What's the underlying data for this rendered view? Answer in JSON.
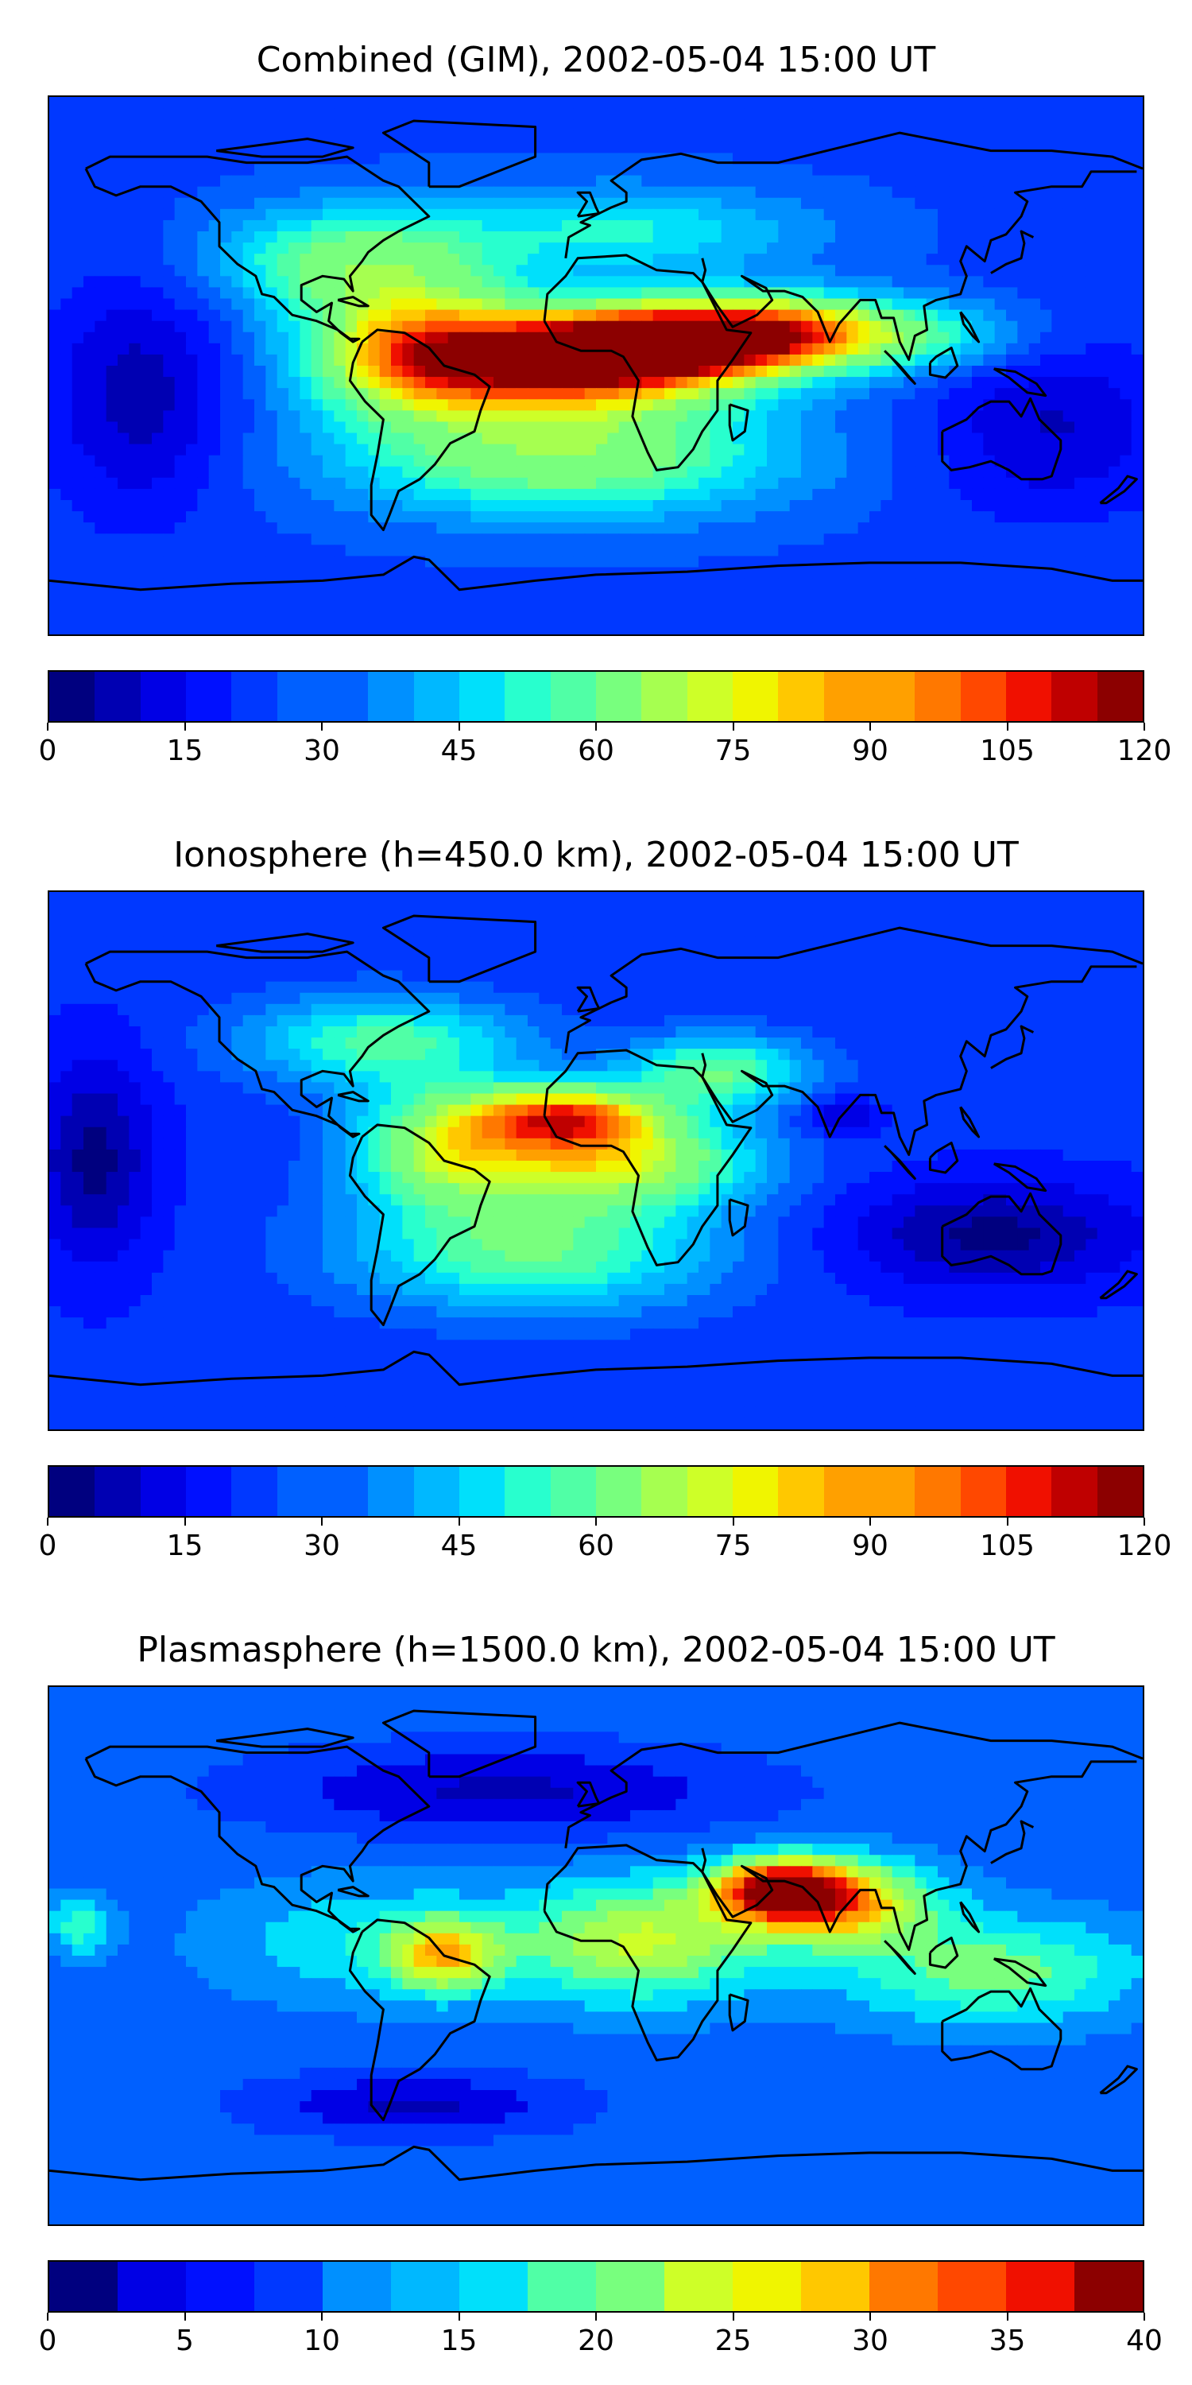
{
  "colors": {
    "jet": [
      "#00007f",
      "#0000b2",
      "#0000e5",
      "#0010ff",
      "#0038ff",
      "#0060ff",
      "#0090ff",
      "#00b8ff",
      "#00e0fb",
      "#28ffce",
      "#50ffa6",
      "#78ff7e",
      "#a6ff50",
      "#ceff28",
      "#f0f500",
      "#ffc800",
      "#ffa000",
      "#ff7800",
      "#ff4800",
      "#f01000",
      "#bf0000",
      "#8c0000"
    ],
    "land_outline": "#000000"
  },
  "panels": [
    {
      "title": "Combined (GIM), 2002-05-04 15:00 UT",
      "colorbar": {
        "min": 0,
        "max": 120,
        "levels": 24,
        "ticks": [
          "0",
          "15",
          "30",
          "45",
          "60",
          "75",
          "90",
          "105",
          "120"
        ]
      },
      "field": {
        "background": 0.22,
        "blobs": [
          {
            "lon": -10,
            "lat": 2,
            "rx": 55,
            "ry": 16,
            "v": 0.92
          },
          {
            "lon": 25,
            "lat": 8,
            "rx": 40,
            "ry": 12,
            "v": 0.78
          },
          {
            "lon": -60,
            "lat": 5,
            "rx": 35,
            "ry": 22,
            "v": 0.6
          },
          {
            "lon": 60,
            "lat": 12,
            "rx": 35,
            "ry": 12,
            "v": 0.6
          },
          {
            "lon": 100,
            "lat": 10,
            "rx": 40,
            "ry": 12,
            "v": 0.45
          },
          {
            "lon": -10,
            "lat": -30,
            "rx": 70,
            "ry": 20,
            "v": 0.55
          },
          {
            "lon": -80,
            "lat": 35,
            "rx": 45,
            "ry": 18,
            "v": 0.5
          },
          {
            "lon": 10,
            "lat": 45,
            "rx": 60,
            "ry": 15,
            "v": 0.4
          },
          {
            "lon": -150,
            "lat": -10,
            "rx": 30,
            "ry": 40,
            "v": 0.08
          },
          {
            "lon": 150,
            "lat": -20,
            "rx": 40,
            "ry": 30,
            "v": 0.1
          }
        ]
      }
    },
    {
      "title": "Ionosphere  (h=450.0 km), 2002-05-04 15:00 UT",
      "colorbar": {
        "min": 0,
        "max": 120,
        "levels": 24,
        "ticks": [
          "0",
          "15",
          "30",
          "45",
          "60",
          "75",
          "90",
          "105",
          "120"
        ]
      },
      "field": {
        "background": 0.2,
        "blobs": [
          {
            "lon": -10,
            "lat": 15,
            "rx": 30,
            "ry": 10,
            "v": 0.72
          },
          {
            "lon": 5,
            "lat": 0,
            "rx": 45,
            "ry": 15,
            "v": 0.62
          },
          {
            "lon": -50,
            "lat": 5,
            "rx": 30,
            "ry": 20,
            "v": 0.55
          },
          {
            "lon": -20,
            "lat": -30,
            "rx": 60,
            "ry": 20,
            "v": 0.48
          },
          {
            "lon": -70,
            "lat": 40,
            "rx": 45,
            "ry": 15,
            "v": 0.45
          },
          {
            "lon": 40,
            "lat": 30,
            "rx": 30,
            "ry": 12,
            "v": 0.48
          },
          {
            "lon": 80,
            "lat": 15,
            "rx": 12,
            "ry": 6,
            "v": 0.08
          },
          {
            "lon": 130,
            "lat": -25,
            "rx": 50,
            "ry": 18,
            "v": 0.05
          },
          {
            "lon": -165,
            "lat": 0,
            "rx": 20,
            "ry": 35,
            "v": 0.05
          }
        ]
      }
    },
    {
      "title": "Plasmasphere (h=1500.0 km), 2002-05-04 15:00 UT",
      "colorbar": {
        "min": 0,
        "max": 40,
        "levels": 16,
        "ticks": [
          "0",
          "5",
          "10",
          "15",
          "20",
          "25",
          "30",
          "35",
          "40"
        ]
      },
      "field": {
        "background": 0.25,
        "blobs": [
          {
            "lon": 60,
            "lat": 22,
            "rx": 22,
            "ry": 10,
            "v": 0.85
          },
          {
            "lon": 80,
            "lat": 18,
            "rx": 30,
            "ry": 14,
            "v": 0.7
          },
          {
            "lon": 15,
            "lat": 5,
            "rx": 40,
            "ry": 20,
            "v": 0.6
          },
          {
            "lon": -50,
            "lat": 0,
            "rx": 18,
            "ry": 12,
            "v": 0.62
          },
          {
            "lon": -75,
            "lat": 5,
            "rx": 50,
            "ry": 20,
            "v": 0.4
          },
          {
            "lon": 130,
            "lat": -5,
            "rx": 50,
            "ry": 18,
            "v": 0.5
          },
          {
            "lon": -30,
            "lat": 55,
            "rx": 80,
            "ry": 15,
            "v": 0.08
          },
          {
            "lon": -60,
            "lat": -50,
            "rx": 50,
            "ry": 10,
            "v": 0.08
          },
          {
            "lon": -170,
            "lat": 10,
            "rx": 10,
            "ry": 10,
            "v": 0.45
          }
        ]
      }
    }
  ],
  "coastlines": [
    [
      [
        -168,
        66
      ],
      [
        -160,
        70
      ],
      [
        -140,
        70
      ],
      [
        -128,
        70
      ],
      [
        -115,
        68
      ],
      [
        -95,
        68
      ],
      [
        -82,
        70
      ],
      [
        -70,
        62
      ],
      [
        -65,
        60
      ],
      [
        -60,
        55
      ],
      [
        -55,
        50
      ],
      [
        -65,
        45
      ],
      [
        -70,
        42
      ],
      [
        -75,
        38
      ],
      [
        -77,
        35
      ],
      [
        -81,
        30
      ],
      [
        -80,
        25
      ],
      [
        -83,
        29
      ],
      [
        -90,
        30
      ],
      [
        -97,
        27
      ],
      [
        -97,
        22
      ],
      [
        -92,
        18
      ],
      [
        -87,
        21
      ],
      [
        -88,
        15
      ],
      [
        -84,
        11
      ],
      [
        -80,
        8
      ],
      [
        -78,
        9
      ],
      [
        -81,
        9
      ],
      [
        -85,
        12
      ],
      [
        -92,
        15
      ],
      [
        -100,
        17
      ],
      [
        -106,
        23
      ],
      [
        -110,
        24
      ],
      [
        -112,
        30
      ],
      [
        -118,
        34
      ],
      [
        -124,
        40
      ],
      [
        -124,
        48
      ],
      [
        -130,
        55
      ],
      [
        -140,
        60
      ],
      [
        -150,
        60
      ],
      [
        -158,
        57
      ],
      [
        -165,
        60
      ],
      [
        -168,
        66
      ]
    ],
    [
      [
        -77,
        8
      ],
      [
        -72,
        12
      ],
      [
        -63,
        11
      ],
      [
        -55,
        6
      ],
      [
        -50,
        0
      ],
      [
        -40,
        -3
      ],
      [
        -35,
        -7
      ],
      [
        -38,
        -15
      ],
      [
        -40,
        -22
      ],
      [
        -48,
        -26
      ],
      [
        -53,
        -33
      ],
      [
        -58,
        -38
      ],
      [
        -65,
        -42
      ],
      [
        -68,
        -50
      ],
      [
        -70,
        -55
      ],
      [
        -74,
        -50
      ],
      [
        -74,
        -40
      ],
      [
        -72,
        -30
      ],
      [
        -70,
        -18
      ],
      [
        -76,
        -12
      ],
      [
        -81,
        -5
      ],
      [
        -80,
        1
      ],
      [
        -77,
        8
      ]
    ],
    [
      [
        -17,
        15
      ],
      [
        -16,
        24
      ],
      [
        -10,
        30
      ],
      [
        -6,
        36
      ],
      [
        10,
        37
      ],
      [
        20,
        32
      ],
      [
        32,
        31
      ],
      [
        35,
        28
      ],
      [
        43,
        12
      ],
      [
        51,
        11
      ],
      [
        45,
        2
      ],
      [
        40,
        -5
      ],
      [
        40,
        -15
      ],
      [
        35,
        -22
      ],
      [
        32,
        -28
      ],
      [
        27,
        -34
      ],
      [
        20,
        -35
      ],
      [
        17,
        -29
      ],
      [
        12,
        -17
      ],
      [
        14,
        -5
      ],
      [
        9,
        3
      ],
      [
        5,
        5
      ],
      [
        -5,
        5
      ],
      [
        -13,
        8
      ],
      [
        -17,
        15
      ]
    ],
    [
      [
        -10,
        36
      ],
      [
        -9,
        43
      ],
      [
        -2,
        47
      ],
      [
        -5,
        48
      ],
      [
        5,
        53
      ],
      [
        10,
        55
      ],
      [
        10,
        58
      ],
      [
        5,
        62
      ],
      [
        15,
        69
      ],
      [
        28,
        71
      ],
      [
        40,
        68
      ],
      [
        60,
        68
      ],
      [
        80,
        73
      ],
      [
        100,
        78
      ],
      [
        130,
        72
      ],
      [
        150,
        72
      ],
      [
        170,
        70
      ],
      [
        180,
        66
      ]
    ],
    [
      [
        35,
        36
      ],
      [
        36,
        32
      ],
      [
        35,
        28
      ],
      [
        40,
        20
      ],
      [
        45,
        13
      ],
      [
        53,
        17
      ],
      [
        58,
        22
      ],
      [
        56,
        26
      ],
      [
        50,
        29
      ],
      [
        48,
        30
      ],
      [
        55,
        25
      ],
      [
        62,
        25
      ],
      [
        68,
        23
      ],
      [
        73,
        18
      ],
      [
        77,
        8
      ],
      [
        80,
        14
      ],
      [
        87,
        22
      ],
      [
        92,
        22
      ],
      [
        94,
        16
      ],
      [
        98,
        16
      ],
      [
        100,
        8
      ],
      [
        103,
        2
      ],
      [
        105,
        10
      ],
      [
        109,
        12
      ],
      [
        108,
        20
      ],
      [
        112,
        22
      ],
      [
        120,
        24
      ],
      [
        122,
        30
      ],
      [
        120,
        35
      ],
      [
        122,
        40
      ],
      [
        128,
        35
      ],
      [
        130,
        42
      ],
      [
        135,
        44
      ],
      [
        140,
        50
      ],
      [
        142,
        55
      ],
      [
        138,
        58
      ],
      [
        150,
        60
      ],
      [
        160,
        60
      ],
      [
        163,
        65
      ],
      [
        178,
        65
      ]
    ],
    [
      [
        114,
        -22
      ],
      [
        114,
        -32
      ],
      [
        117,
        -35
      ],
      [
        123,
        -34
      ],
      [
        130,
        -32
      ],
      [
        136,
        -35
      ],
      [
        140,
        -38
      ],
      [
        147,
        -38
      ],
      [
        150,
        -37
      ],
      [
        153,
        -28
      ],
      [
        153,
        -25
      ],
      [
        146,
        -18
      ],
      [
        143,
        -11
      ],
      [
        140,
        -17
      ],
      [
        136,
        -12
      ],
      [
        130,
        -12
      ],
      [
        126,
        -14
      ],
      [
        122,
        -18
      ],
      [
        114,
        -22
      ]
    ],
    [
      [
        -180,
        -72
      ],
      [
        -150,
        -75
      ],
      [
        -120,
        -73
      ],
      [
        -90,
        -72
      ],
      [
        -70,
        -70
      ],
      [
        -60,
        -64
      ],
      [
        -55,
        -65
      ],
      [
        -45,
        -75
      ],
      [
        -20,
        -72
      ],
      [
        0,
        -70
      ],
      [
        30,
        -69
      ],
      [
        60,
        -67
      ],
      [
        90,
        -66
      ],
      [
        120,
        -66
      ],
      [
        150,
        -68
      ],
      [
        170,
        -72
      ],
      [
        180,
        -72
      ]
    ],
    [
      [
        -6,
        50
      ],
      [
        -3,
        55
      ],
      [
        -6,
        58
      ],
      [
        -2,
        58
      ],
      [
        0,
        53
      ],
      [
        1,
        51
      ],
      [
        -6,
        50
      ]
    ],
    [
      [
        -55,
        60
      ],
      [
        -45,
        60
      ],
      [
        -20,
        70
      ],
      [
        -20,
        80
      ],
      [
        -60,
        82
      ],
      [
        -70,
        78
      ],
      [
        -55,
        68
      ],
      [
        -55,
        60
      ]
    ],
    [
      [
        130,
        31
      ],
      [
        135,
        34
      ],
      [
        140,
        36
      ],
      [
        141,
        41
      ],
      [
        140,
        45
      ],
      [
        142,
        44
      ],
      [
        144,
        43
      ]
    ],
    [
      [
        95,
        5
      ],
      [
        100,
        0
      ],
      [
        105,
        -6
      ],
      [
        103,
        -4
      ],
      [
        97,
        3
      ],
      [
        95,
        5
      ]
    ],
    [
      [
        110,
        1
      ],
      [
        110,
        -3
      ],
      [
        115,
        -4
      ],
      [
        119,
        0
      ],
      [
        117,
        6
      ],
      [
        112,
        3
      ],
      [
        110,
        1
      ]
    ],
    [
      [
        120,
        18
      ],
      [
        123,
        14
      ],
      [
        126,
        8
      ],
      [
        124,
        10
      ],
      [
        121,
        14
      ],
      [
        120,
        18
      ]
    ],
    [
      [
        131,
        -1
      ],
      [
        138,
        -2
      ],
      [
        145,
        -6
      ],
      [
        148,
        -10
      ],
      [
        142,
        -9
      ],
      [
        136,
        -4
      ],
      [
        131,
        -1
      ]
    ],
    [
      [
        166,
        -46
      ],
      [
        172,
        -41
      ],
      [
        175,
        -37
      ],
      [
        178,
        -38
      ],
      [
        174,
        -42
      ],
      [
        168,
        -46
      ],
      [
        166,
        -46
      ]
    ],
    [
      [
        44,
        -13
      ],
      [
        50,
        -15
      ],
      [
        49,
        -22
      ],
      [
        45,
        -25
      ],
      [
        44,
        -20
      ],
      [
        44,
        -13
      ]
    ],
    [
      [
        -85,
        22
      ],
      [
        -80,
        23
      ],
      [
        -75,
        20
      ],
      [
        -78,
        20
      ],
      [
        -85,
        22
      ]
    ],
    [
      [
        -125,
        72
      ],
      [
        -110,
        74
      ],
      [
        -95,
        76
      ],
      [
        -80,
        73
      ],
      [
        -90,
        70
      ],
      [
        -110,
        70
      ],
      [
        -125,
        72
      ]
    ]
  ]
}
